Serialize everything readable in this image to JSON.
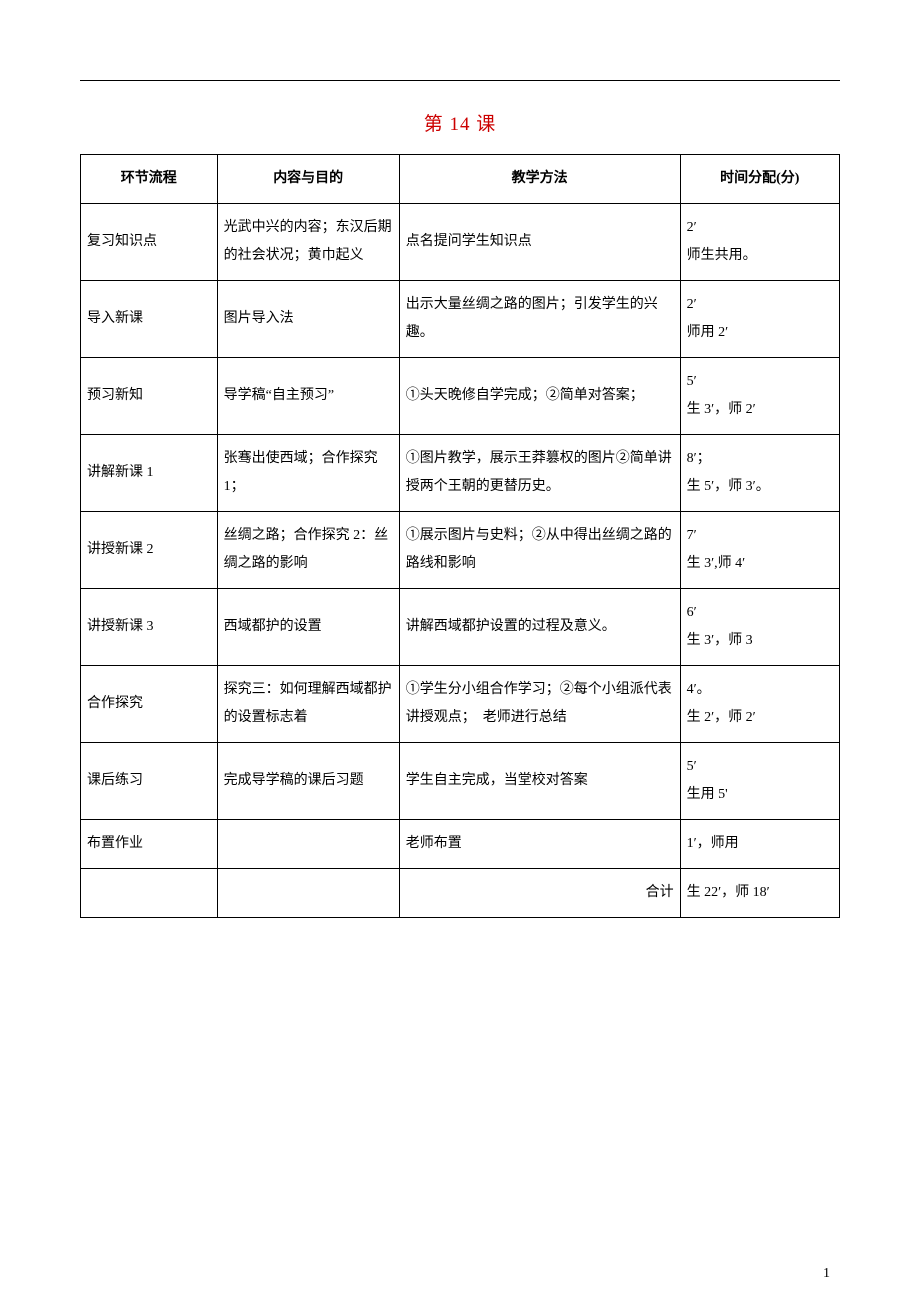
{
  "title": "第 14 课",
  "header": {
    "col1": "环节流程",
    "col2": "内容与目的",
    "col3": "教学方法",
    "col4": "时间分配(分)"
  },
  "rows": [
    {
      "c1": "复习知识点",
      "c2": "光武中兴的内容；东汉后期的社会状况；黄巾起义",
      "c3": "点名提问学生知识点",
      "c4": "2′\n师生共用。"
    },
    {
      "c1": "导入新课",
      "c2": "图片导入法",
      "c3": "出示大量丝绸之路的图片；引发学生的兴趣。",
      "c4": "2′\n师用 2′"
    },
    {
      "c1": "预习新知",
      "c2": "导学稿“自主预习”",
      "c3": "①头天晚修自学完成；②简单对答案；",
      "c4": "5′\n生 3′，师 2′"
    },
    {
      "c1": "讲解新课 1",
      "c2": "张骞出使西域；合作探究1；",
      "c3": "①图片教学，展示王莽篡权的图片②简单讲授两个王朝的更替历史。",
      "c4": "8′；\n生 5′，师 3′。"
    },
    {
      "c1": "讲授新课 2",
      "c2": "丝绸之路；合作探究 2：丝绸之路的影响",
      "c3": "①展示图片与史料；②从中得出丝绸之路的路线和影响",
      "c4": "7′\n生 3′,师 4′"
    },
    {
      "c1": "讲授新课 3",
      "c2": "西域都护的设置",
      "c3": "讲解西域都护设置的过程及意义。",
      "c4": "6′\n生 3′，师 3"
    },
    {
      "c1": "合作探究",
      "c2": "探究三：如何理解西域都护的设置标志着",
      "c3": "①学生分小组合作学习；②每个小组派代表讲授观点；　老师进行总结",
      "c4": "4′。\n生 2′，师 2′"
    },
    {
      "c1": "课后练习",
      "c2": "完成导学稿的课后习题",
      "c3": "学生自主完成，当堂校对答案",
      "c4": "5′\n生用 5'"
    },
    {
      "c1": "布置作业",
      "c2": "",
      "c3": "老师布置",
      "c4": "1′，师用"
    }
  ],
  "totalLabel": "合计",
  "totalValue": "生 22′，师 18′",
  "pageNumber": "1"
}
